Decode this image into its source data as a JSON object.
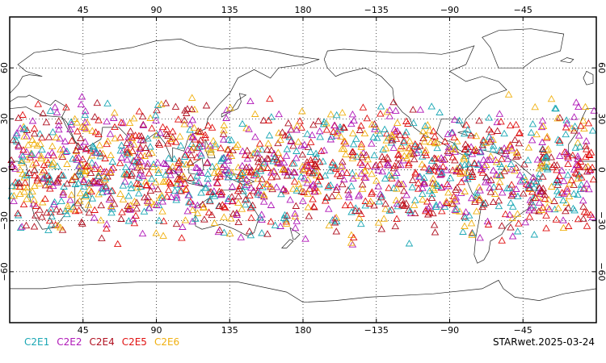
{
  "map": {
    "projection": "equirectangular",
    "lon_range": [
      0,
      360
    ],
    "lat_range": [
      -90,
      90
    ],
    "top_lon_ticks": [
      {
        "lon": 45,
        "label": "45"
      },
      {
        "lon": 90,
        "label": "90"
      },
      {
        "lon": 135,
        "label": "135"
      },
      {
        "lon": 180,
        "label": "180"
      },
      {
        "lon": 225,
        "label": "−135"
      },
      {
        "lon": 270,
        "label": "−90"
      },
      {
        "lon": 315,
        "label": "−45"
      }
    ],
    "bottom_lon_ticks": [
      {
        "lon": 45,
        "label": "45"
      },
      {
        "lon": 90,
        "label": "90"
      },
      {
        "lon": 135,
        "label": "135"
      },
      {
        "lon": 180,
        "label": "180"
      },
      {
        "lon": 225,
        "label": "−135"
      },
      {
        "lon": 270,
        "label": "−90"
      },
      {
        "lon": 315,
        "label": "−45"
      }
    ],
    "lat_ticks": [
      {
        "lat": 60,
        "label": "60"
      },
      {
        "lat": 30,
        "label": "30"
      },
      {
        "lat": 0,
        "label": "0"
      },
      {
        "lat": -30,
        "label": "−30"
      },
      {
        "lat": -60,
        "label": "−60"
      }
    ],
    "grid": "dotted",
    "observation_lat_band": [
      -45,
      45
    ],
    "marker": "open-triangle"
  },
  "legend": {
    "items": [
      {
        "label": "C2E1",
        "color": "#1aa7b4"
      },
      {
        "label": "C2E2",
        "color": "#b018b8"
      },
      {
        "label": "C2E4",
        "color": "#b01020"
      },
      {
        "label": "C2E5",
        "color": "#e01010"
      },
      {
        "label": "C2E6",
        "color": "#f0b010"
      }
    ]
  },
  "footer": {
    "stamp": "STARwet.2025-03-24"
  }
}
